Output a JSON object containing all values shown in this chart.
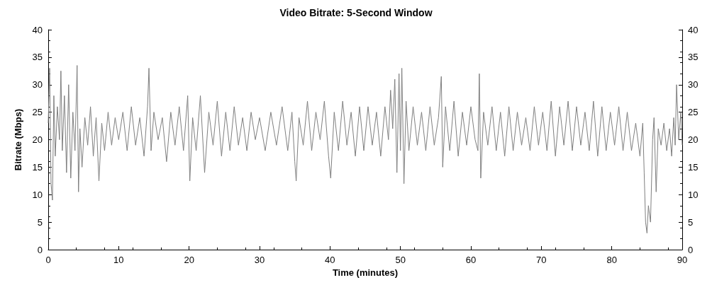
{
  "chart_data": {
    "type": "line",
    "title": "Video Bitrate: 5-Second Window",
    "xlabel": "Time (minutes)",
    "ylabel": "Bitrate (Mbps)",
    "xlim": [
      0,
      90
    ],
    "xticks": [
      0,
      10,
      20,
      30,
      40,
      50,
      60,
      70,
      80,
      90
    ],
    "ylim": [
      0,
      40
    ],
    "yticks": [
      0,
      5,
      10,
      15,
      20,
      25,
      30,
      35,
      40
    ],
    "y2lim": [
      0,
      40
    ],
    "y2ticks": [
      0,
      5,
      10,
      15,
      20,
      25,
      30,
      35,
      40
    ],
    "grid": false,
    "marker": "none",
    "line_style": "solid",
    "series": [
      {
        "color": "#7f7f7f",
        "x": [
          0,
          0.2,
          0.4,
          0.6,
          0.8,
          1.0,
          1.3,
          1.6,
          1.8,
          2.0,
          2.3,
          2.6,
          2.9,
          3.2,
          3.5,
          3.8,
          4.1,
          4.3,
          4.5,
          4.8,
          5.2,
          5.6,
          6.0,
          6.4,
          6.8,
          7.2,
          7.6,
          8.0,
          8.5,
          9.0,
          9.5,
          10.0,
          10.6,
          11.2,
          11.8,
          12.4,
          13.0,
          13.6,
          14.1,
          14.3,
          14.6,
          15.0,
          15.6,
          16.2,
          16.8,
          17.4,
          18.0,
          18.6,
          19.2,
          19.8,
          20.1,
          20.5,
          21.0,
          21.6,
          22.2,
          22.8,
          23.4,
          24.0,
          24.6,
          25.2,
          25.8,
          26.4,
          27.0,
          27.6,
          28.2,
          28.8,
          29.4,
          30.0,
          30.8,
          31.6,
          32.4,
          33.2,
          34.0,
          34.6,
          35.0,
          35.2,
          35.6,
          36.2,
          36.8,
          37.4,
          38.0,
          38.6,
          39.2,
          39.8,
          40.1,
          40.6,
          41.2,
          41.8,
          42.4,
          43.0,
          43.6,
          44.2,
          44.8,
          45.4,
          46.0,
          46.6,
          47.2,
          47.8,
          48.3,
          48.6,
          48.9,
          49.2,
          49.5,
          49.8,
          50.0,
          50.2,
          50.5,
          50.8,
          51.2,
          51.8,
          52.4,
          53.0,
          53.6,
          54.2,
          54.8,
          55.4,
          55.8,
          56.0,
          56.4,
          57.0,
          57.6,
          58.2,
          58.8,
          59.4,
          60.0,
          60.6,
          61.0,
          61.2,
          61.4,
          61.8,
          62.4,
          63.0,
          63.6,
          64.2,
          64.8,
          65.4,
          66.0,
          66.6,
          67.2,
          67.8,
          68.4,
          69.0,
          69.6,
          70.2,
          70.8,
          71.4,
          72.0,
          72.6,
          73.2,
          73.8,
          74.4,
          75.0,
          75.6,
          76.2,
          76.8,
          77.4,
          78.0,
          78.6,
          79.2,
          79.8,
          80.4,
          81.0,
          81.6,
          82.2,
          82.8,
          83.4,
          84.0,
          84.4,
          84.6,
          84.8,
          85.0,
          85.2,
          85.5,
          85.8,
          86.0,
          86.3,
          86.6,
          87.0,
          87.4,
          87.8,
          88.2,
          88.5,
          88.8,
          89.0,
          89.2,
          89.5,
          89.8,
          90
        ],
        "values": [
          23,
          33,
          12,
          9,
          28,
          17,
          26,
          20,
          32.5,
          18,
          28,
          14,
          30,
          13,
          25,
          18,
          33.5,
          10.5,
          22,
          15,
          24,
          19,
          26,
          17,
          24,
          12.5,
          23,
          18,
          25,
          19,
          24,
          20,
          25,
          18,
          26,
          19,
          24,
          17,
          26,
          33,
          18,
          25,
          20,
          24,
          16,
          25,
          19,
          26,
          18,
          28,
          12.5,
          24,
          18,
          28,
          14,
          25,
          19,
          27,
          17,
          25,
          18,
          26,
          19,
          24,
          18,
          25,
          20,
          24,
          18,
          25,
          19,
          26,
          18,
          25,
          16,
          12.5,
          24,
          19,
          27,
          18,
          25,
          20,
          27,
          17,
          13,
          25,
          18,
          27,
          19,
          25,
          17,
          26,
          18,
          26,
          19,
          25,
          17,
          26,
          20,
          29,
          22,
          31,
          14,
          32,
          18,
          33,
          12,
          27,
          18,
          26,
          19,
          25,
          18,
          26,
          19,
          24,
          31.5,
          15,
          26,
          18,
          27,
          17,
          25,
          19,
          26,
          20,
          18,
          32,
          13,
          25,
          19,
          26,
          18,
          25,
          17,
          26,
          18,
          25,
          19,
          24,
          18,
          26,
          19,
          25,
          18,
          27,
          17,
          26,
          19,
          27,
          18,
          26,
          19,
          25,
          18,
          27,
          17,
          26,
          18,
          25,
          19,
          26,
          18,
          25,
          18,
          23,
          17,
          23,
          14,
          5,
          3,
          8,
          5,
          20,
          24,
          10.5,
          22,
          19,
          23,
          18,
          22,
          17,
          24,
          19,
          30,
          20,
          25,
          19
        ]
      }
    ]
  }
}
